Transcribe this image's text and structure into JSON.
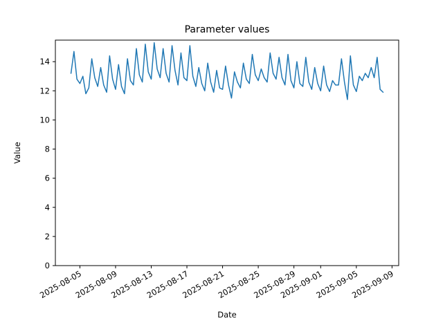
{
  "figure": {
    "background": "#ffffff"
  },
  "chart_data": {
    "type": "line",
    "title": "Parameter values",
    "xlabel": "Date",
    "ylabel": "Value",
    "grid": false,
    "legend": "none",
    "axis_color": "#000000",
    "ylim": [
      0,
      15.48
    ],
    "x_margin_days": 1.75,
    "y_ticks": [
      0,
      2,
      4,
      6,
      8,
      10,
      12,
      14
    ],
    "x_ticks": [
      {
        "label": "2025-08-05",
        "day": 1
      },
      {
        "label": "2025-08-09",
        "day": 5
      },
      {
        "label": "2025-08-13",
        "day": 9
      },
      {
        "label": "2025-08-17",
        "day": 13
      },
      {
        "label": "2025-08-21",
        "day": 17
      },
      {
        "label": "2025-08-25",
        "day": 21
      },
      {
        "label": "2025-08-29",
        "day": 25
      },
      {
        "label": "2025-09-01",
        "day": 28
      },
      {
        "label": "2025-09-05",
        "day": 32
      },
      {
        "label": "2025-09-09",
        "day": 36
      }
    ],
    "series": [
      {
        "name": "parameter-values",
        "color": "#1f77b4",
        "line_width": 1.5,
        "start": "2025-08-04T00:00",
        "step_hours": 8,
        "values": [
          13.2,
          14.7,
          12.8,
          12.5,
          13.0,
          11.8,
          12.2,
          14.2,
          12.9,
          12.3,
          13.6,
          12.4,
          11.9,
          14.4,
          12.8,
          12.1,
          13.8,
          12.3,
          11.8,
          14.2,
          12.7,
          12.4,
          14.9,
          13.1,
          12.6,
          15.2,
          13.3,
          12.8,
          15.3,
          13.5,
          12.9,
          14.9,
          13.2,
          12.6,
          15.1,
          13.4,
          12.4,
          14.6,
          12.9,
          12.7,
          15.1,
          13.0,
          12.3,
          13.6,
          12.5,
          12.0,
          13.9,
          12.6,
          11.9,
          13.4,
          12.2,
          12.1,
          13.7,
          12.4,
          11.5,
          13.3,
          12.6,
          12.2,
          13.9,
          12.8,
          12.5,
          14.5,
          13.1,
          12.7,
          13.5,
          12.9,
          12.6,
          14.6,
          13.2,
          12.8,
          14.3,
          12.9,
          12.4,
          14.5,
          12.7,
          12.2,
          14.0,
          12.5,
          12.3,
          14.3,
          12.6,
          12.1,
          13.6,
          12.5,
          12.0,
          13.7,
          12.4,
          11.95,
          12.7,
          12.4,
          12.4,
          14.2,
          12.6,
          11.4,
          14.4,
          12.4,
          11.95,
          13.0,
          12.7,
          13.2,
          12.9,
          13.6,
          12.9,
          14.3,
          12.1,
          11.9
        ]
      }
    ]
  }
}
